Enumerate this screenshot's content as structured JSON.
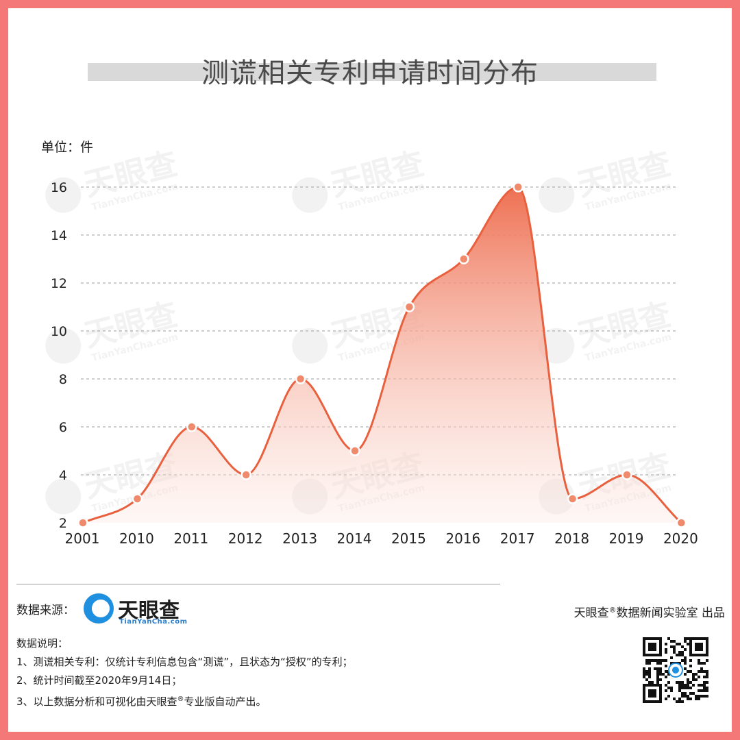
{
  "title": "测谎相关专利申请时间分布",
  "unit_label": "单位：件",
  "colors": {
    "background_border": "#f47878",
    "line": "#e8603e",
    "fill_top": "#ee7052",
    "fill_bottom": "#fde8e2",
    "marker": "#f08a6c",
    "gridline": "#b0b0b0"
  },
  "chart_data": {
    "type": "area",
    "title": "测谎相关专利申请时间分布",
    "xlabel": "",
    "ylabel": "单位：件",
    "categories": [
      "2001",
      "2010",
      "2011",
      "2012",
      "2013",
      "2014",
      "2015",
      "2016",
      "2017",
      "2018",
      "2019",
      "2020"
    ],
    "values": [
      2,
      3,
      6,
      4,
      8,
      5,
      11,
      13,
      16,
      3,
      4,
      2
    ],
    "y_ticks": [
      2,
      4,
      6,
      8,
      10,
      12,
      14,
      16
    ],
    "ylim": [
      2,
      16
    ],
    "grid": "horizontal dashed",
    "smooth": true
  },
  "watermark": {
    "name": "天眼查",
    "sub": "TianYanCha.com"
  },
  "footer": {
    "source_label": "数据来源：",
    "logo_name": "天眼查",
    "logo_sub": "TianYanCha.com",
    "producer_prefix": "天眼查",
    "producer_reg": "®",
    "producer_suffix": "数据新闻实验室 出品",
    "notes_title": "数据说明：",
    "note1": "1、测谎相关专利：仅统计专利信息包含“测谎”，且状态为“授权”的专利；",
    "note2": "2、统计时间截至2020年9月14日；",
    "note3_prefix": "3、以上数据分析和可视化由天眼查",
    "note3_reg": "®",
    "note3_suffix": "专业版自动产出。",
    "qr_icon": "qr-code-icon"
  }
}
